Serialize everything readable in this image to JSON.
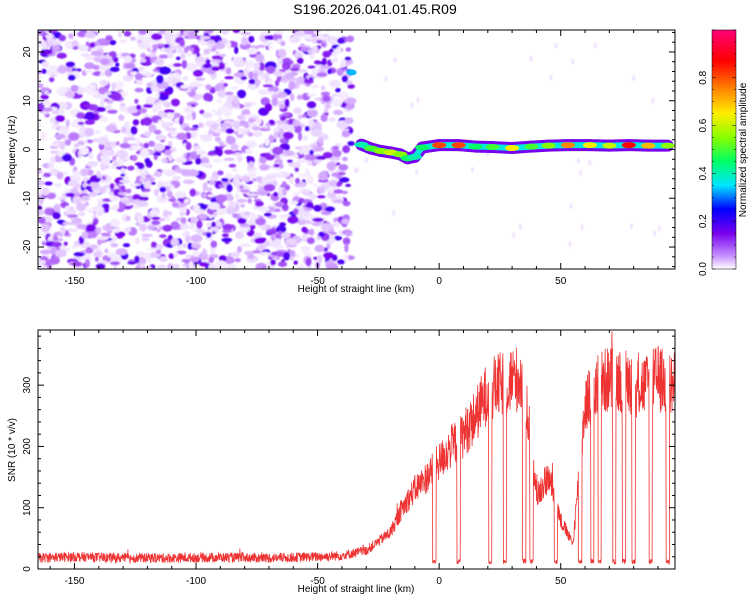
{
  "title": "S196.2026.041.01.45.R09",
  "chart_data": [
    {
      "type": "heatmap",
      "xlabel": "Height of straight line (km)",
      "ylabel": "Frequency (Hz)",
      "xlim": [
        -165,
        97
      ],
      "ylim": [
        -24.5,
        24.5
      ],
      "xticks": [
        -150,
        -100,
        -50,
        0,
        50
      ],
      "yticks": [
        -20,
        -10,
        0,
        10,
        20
      ],
      "colorbar": {
        "label": "Normalized spectral amplitude",
        "range": [
          0,
          1
        ],
        "ticks": [
          0.0,
          0.2,
          0.4,
          0.6,
          0.8
        ],
        "colors": [
          "#ffffff",
          "#cc99ff",
          "#7700ee",
          "#0000ff",
          "#00e5ff",
          "#00ff66",
          "#88ff00",
          "#ffee00",
          "#ff8800",
          "#ff0000",
          "#ff0077"
        ]
      },
      "noise_region": {
        "x": [
          -165,
          -36
        ],
        "y": [
          -24.5,
          24.5
        ],
        "amplitude": [
          0.02,
          0.25
        ]
      },
      "signal_line": [
        {
          "x": -36,
          "y": 15.8,
          "amp": 0.38
        },
        {
          "x": -32,
          "y": 1.0,
          "amp": 0.45
        },
        {
          "x": -28,
          "y": 0.2,
          "amp": 0.55
        },
        {
          "x": -24,
          "y": -0.3,
          "amp": 0.6
        },
        {
          "x": -20,
          "y": -0.6,
          "amp": 0.65
        },
        {
          "x": -16,
          "y": -1.0,
          "amp": 0.6
        },
        {
          "x": -13,
          "y": -1.8,
          "amp": 0.5
        },
        {
          "x": -10,
          "y": -1.5,
          "amp": 0.45
        },
        {
          "x": -7,
          "y": 0.4,
          "amp": 0.5
        },
        {
          "x": 0,
          "y": 0.9,
          "amp": 0.85
        },
        {
          "x": 8,
          "y": 0.9,
          "amp": 0.85
        },
        {
          "x": 15,
          "y": 0.6,
          "amp": 0.5
        },
        {
          "x": 22,
          "y": 0.5,
          "amp": 0.55
        },
        {
          "x": 30,
          "y": 0.3,
          "amp": 0.7
        },
        {
          "x": 38,
          "y": 0.6,
          "amp": 0.55
        },
        {
          "x": 45,
          "y": 0.8,
          "amp": 0.6
        },
        {
          "x": 53,
          "y": 0.9,
          "amp": 0.8
        },
        {
          "x": 62,
          "y": 0.9,
          "amp": 0.7
        },
        {
          "x": 70,
          "y": 0.8,
          "amp": 0.65
        },
        {
          "x": 78,
          "y": 0.9,
          "amp": 0.9
        },
        {
          "x": 86,
          "y": 0.8,
          "amp": 0.75
        },
        {
          "x": 94,
          "y": 0.8,
          "amp": 0.6
        }
      ]
    },
    {
      "type": "line",
      "xlabel": "Height of straight line (km)",
      "ylabel": "SNR (10 * v/v)",
      "xlim": [
        -165,
        97
      ],
      "ylim": [
        0,
        390
      ],
      "xticks": [
        -150,
        -100,
        -50,
        0,
        50
      ],
      "yticks": [
        0,
        100,
        200,
        300
      ],
      "color": "#ee3333",
      "series": [
        {
          "x": [
            -165,
            -150,
            -130,
            -110,
            -90,
            -70,
            -50,
            -40,
            -30,
            -20,
            -15,
            -10,
            -5,
            0,
            5,
            10,
            15,
            20,
            25,
            30,
            35,
            40,
            45,
            50,
            55,
            60,
            65,
            70,
            75,
            80,
            85,
            90,
            95
          ],
          "values": [
            18,
            20,
            18,
            18,
            19,
            18,
            20,
            22,
            30,
            60,
            100,
            130,
            150,
            175,
            200,
            220,
            250,
            290,
            300,
            310,
            310,
            120,
            150,
            80,
            40,
            270,
            300,
            310,
            310,
            300,
            300,
            310,
            300
          ]
        }
      ],
      "dropouts_x": [
        -2,
        8,
        21,
        27,
        35,
        38,
        48,
        58,
        63,
        66,
        72,
        76,
        80,
        87,
        94
      ],
      "grid": false
    }
  ]
}
